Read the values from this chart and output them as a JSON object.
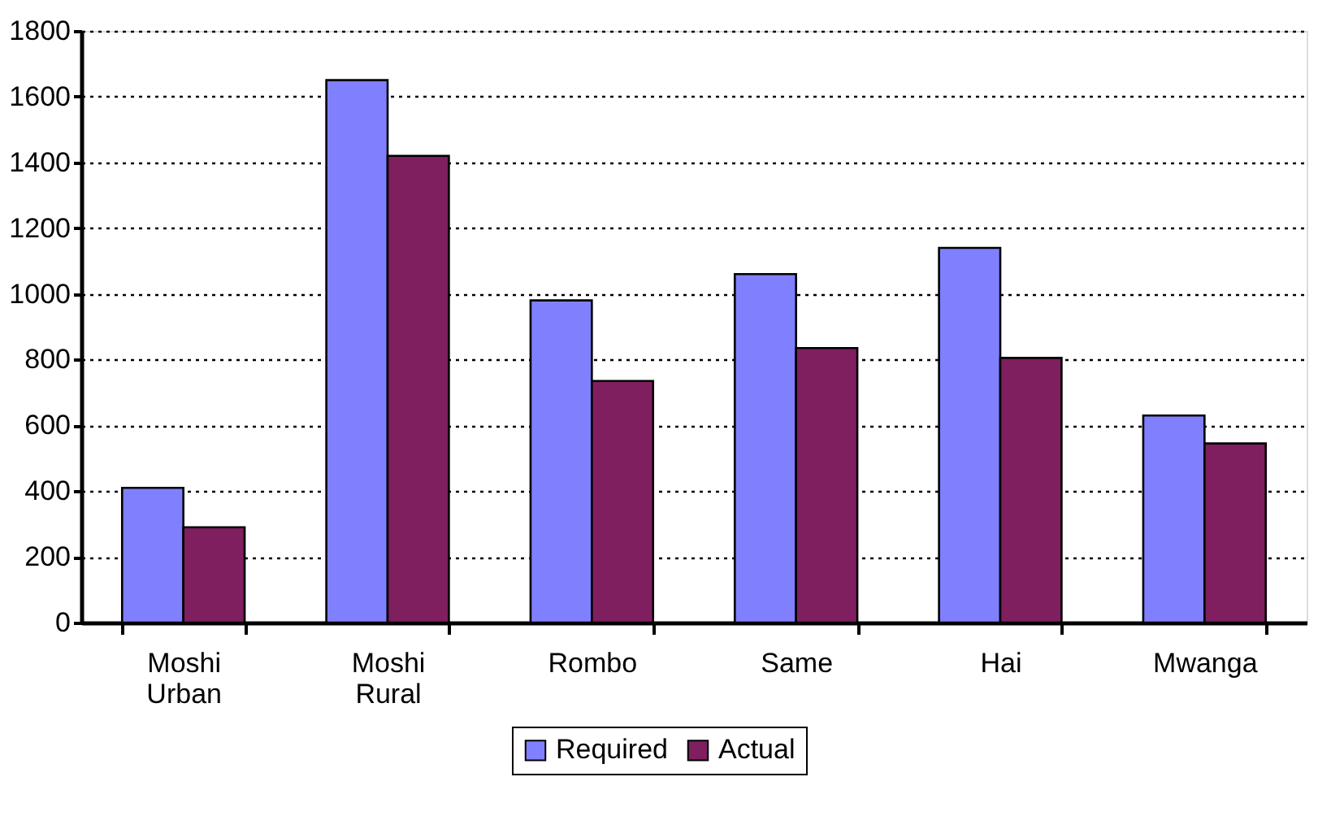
{
  "chart_data": {
    "type": "bar",
    "categories": [
      "Moshi Urban",
      "Moshi Rural",
      "Rombo",
      "Same",
      "Hai",
      "Mwanga"
    ],
    "series": [
      {
        "name": "Required",
        "color": "#8080ff",
        "values": [
          410,
          1650,
          980,
          1060,
          1140,
          630
        ]
      },
      {
        "name": "Actual",
        "color": "#7f1f5f",
        "values": [
          290,
          1420,
          735,
          835,
          805,
          545
        ]
      }
    ],
    "ylim": [
      0,
      1800
    ],
    "yticks": [
      0,
      200,
      400,
      600,
      800,
      1000,
      1200,
      1400,
      1600,
      1800
    ],
    "grid": "y",
    "legend": "bottom"
  }
}
